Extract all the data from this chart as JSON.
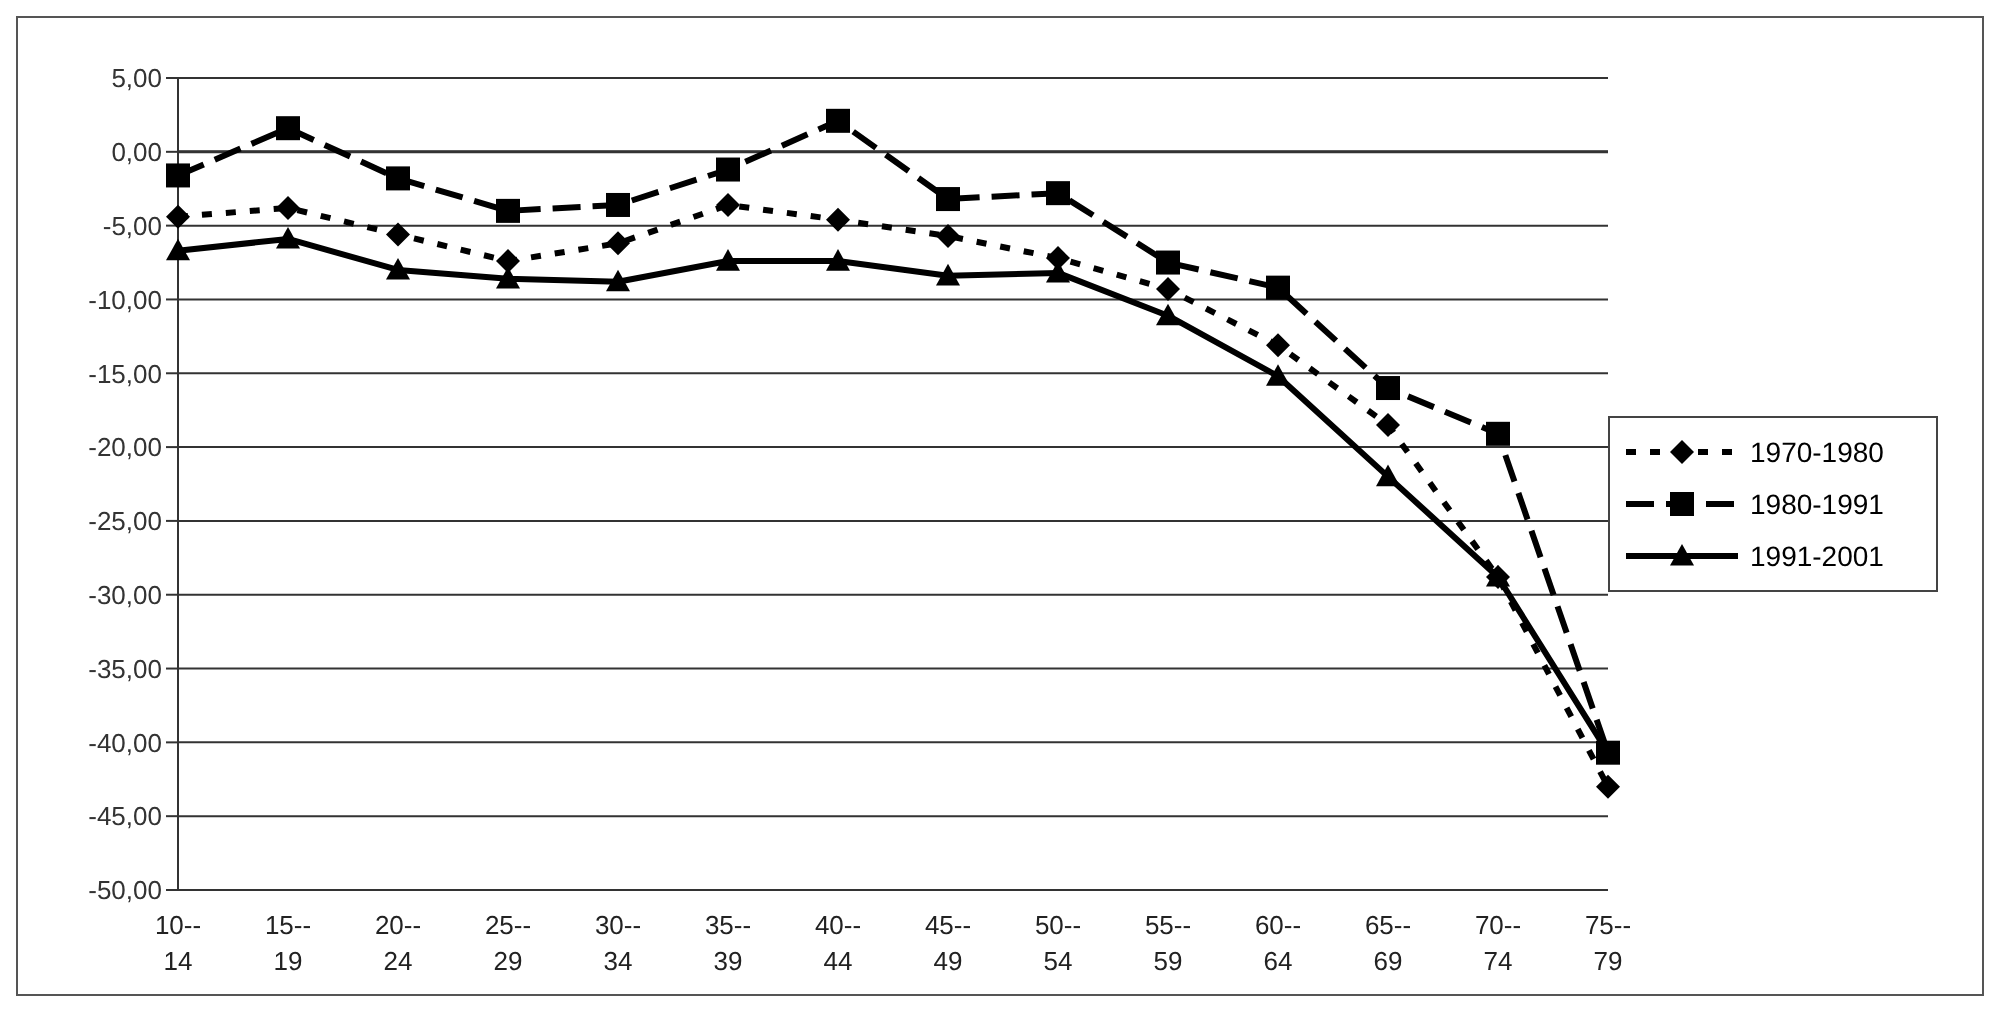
{
  "chart_data": {
    "type": "line",
    "categories": [
      "10--14",
      "15--19",
      "20--24",
      "25--29",
      "30--34",
      "35--39",
      "40--44",
      "45--49",
      "50--54",
      "55--59",
      "60--64",
      "65--69",
      "70--74",
      "75--79"
    ],
    "series": [
      {
        "name": "1970-1980",
        "color": "#000000",
        "marker": "diamond",
        "line_style": "dotted",
        "values": [
          -4.4,
          -3.8,
          -5.6,
          -7.4,
          -6.2,
          -3.6,
          -4.6,
          -5.7,
          -7.2,
          -9.3,
          -13.1,
          -18.5,
          -28.8,
          -43.0
        ]
      },
      {
        "name": "1980-1991",
        "color": "#000000",
        "marker": "square",
        "line_style": "dashed",
        "values": [
          -1.6,
          1.6,
          -1.8,
          -4.0,
          -3.6,
          -1.2,
          2.1,
          -3.2,
          -2.8,
          -7.5,
          -9.2,
          -16.0,
          -19.1,
          -40.7
        ]
      },
      {
        "name": "1991-2001",
        "color": "#000000",
        "marker": "triangle",
        "line_style": "solid",
        "values": [
          -6.7,
          -5.9,
          -8.0,
          -8.6,
          -8.8,
          -7.4,
          -7.4,
          -8.4,
          -8.2,
          -11.1,
          -15.2,
          -22.0,
          -28.8,
          -40.7
        ]
      }
    ],
    "ylim": [
      -50,
      5
    ],
    "yticks": [
      {
        "value": 5,
        "label": "5,00"
      },
      {
        "value": 0,
        "label": "0,00"
      },
      {
        "value": -5,
        "label": "-5,00"
      },
      {
        "value": -10,
        "label": "-10,00"
      },
      {
        "value": -15,
        "label": "-15,00"
      },
      {
        "value": -20,
        "label": "-20,00"
      },
      {
        "value": -25,
        "label": "-25,00"
      },
      {
        "value": -30,
        "label": "-30,00"
      },
      {
        "value": -35,
        "label": "-35,00"
      },
      {
        "value": -40,
        "label": "-40,00"
      },
      {
        "value": -45,
        "label": "-45,00"
      },
      {
        "value": -50,
        "label": "-50,00"
      }
    ],
    "grid": "y",
    "legend": "right"
  }
}
